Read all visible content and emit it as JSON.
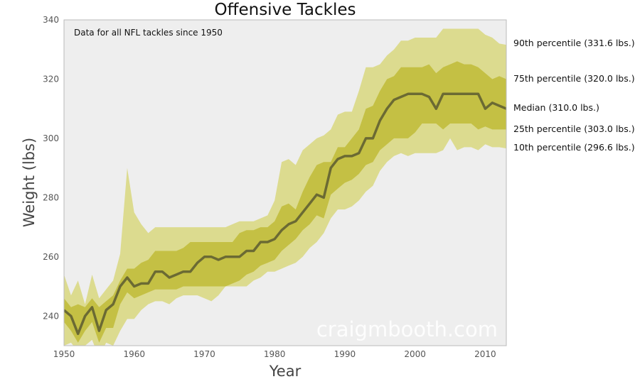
{
  "chart_data": {
    "type": "area",
    "title": "Offensive Tackles",
    "xlabel": "Year",
    "ylabel": "Weight (lbs)",
    "annotation": "Data for all NFL tackles since 1950",
    "watermark": "craigmbooth.com",
    "xlim": [
      1950,
      2013
    ],
    "ylim": [
      230,
      340
    ],
    "grid": false,
    "xticks": [
      1950,
      1960,
      1970,
      1980,
      1990,
      2000,
      2010
    ],
    "yticks": [
      240,
      260,
      280,
      300,
      320,
      340
    ],
    "x": [
      1950,
      1951,
      1952,
      1953,
      1954,
      1955,
      1956,
      1957,
      1958,
      1959,
      1960,
      1961,
      1962,
      1963,
      1964,
      1965,
      1966,
      1967,
      1968,
      1969,
      1970,
      1971,
      1972,
      1973,
      1974,
      1975,
      1976,
      1977,
      1978,
      1979,
      1980,
      1981,
      1982,
      1983,
      1984,
      1985,
      1986,
      1987,
      1988,
      1989,
      1990,
      1991,
      1992,
      1993,
      1994,
      1995,
      1996,
      1997,
      1998,
      1999,
      2000,
      2001,
      2002,
      2003,
      2004,
      2005,
      2006,
      2007,
      2008,
      2009,
      2010,
      2011,
      2012,
      2013
    ],
    "series": [
      {
        "name": "90th percentile (331.6 lbs.)",
        "values": [
          254,
          247,
          252,
          244,
          254,
          246,
          249,
          252,
          261,
          290,
          275,
          271,
          268,
          270,
          270,
          270,
          270,
          270,
          270,
          270,
          270,
          270,
          270,
          270,
          271,
          272,
          272,
          272,
          273,
          274,
          279,
          292,
          293,
          291,
          296,
          298,
          300,
          301,
          303,
          308,
          309,
          309,
          316,
          324,
          324,
          325,
          328,
          330,
          333,
          333,
          334,
          334,
          334,
          334,
          337,
          337,
          337,
          337,
          337,
          337,
          335,
          334,
          332,
          331.6
        ]
      },
      {
        "name": "75th percentile (320.0 lbs.)",
        "values": [
          246,
          243,
          244,
          243,
          246,
          243,
          245,
          247,
          252,
          256,
          256,
          258,
          259,
          262,
          262,
          262,
          262,
          263,
          265,
          265,
          265,
          265,
          265,
          265,
          265,
          268,
          269,
          269,
          270,
          270,
          272,
          277,
          278,
          276,
          282,
          287,
          291,
          292,
          292,
          297,
          297,
          300,
          303,
          310,
          311,
          316,
          320,
          321,
          324,
          324,
          324,
          324,
          325,
          322,
          324,
          325,
          326,
          325,
          325,
          324,
          322,
          320,
          321,
          320
        ]
      },
      {
        "name": "Median (310.0 lbs.)",
        "values": [
          242,
          240,
          234,
          240,
          243,
          235,
          242,
          244,
          250,
          253,
          250,
          251,
          251,
          255,
          255,
          253,
          254,
          255,
          255,
          258,
          260,
          260,
          259,
          260,
          260,
          260,
          262,
          262,
          265,
          265,
          266,
          269,
          271,
          272,
          275,
          278,
          281,
          280,
          290,
          293,
          294,
          294,
          295,
          300,
          300,
          306,
          310,
          313,
          314,
          315,
          315,
          315,
          314,
          310,
          315,
          315,
          315,
          315,
          315,
          315,
          310,
          312,
          311,
          310
        ]
      },
      {
        "name": "25th percentile (303.0 lbs.)",
        "values": [
          238,
          235,
          231,
          235,
          238,
          231,
          236,
          236,
          244,
          248,
          246,
          247,
          248,
          249,
          249,
          249,
          249,
          250,
          250,
          250,
          250,
          250,
          250,
          250,
          251,
          252,
          254,
          255,
          257,
          258,
          259,
          262,
          264,
          266,
          269,
          271,
          274,
          273,
          281,
          283,
          285,
          286,
          288,
          291,
          292,
          296,
          298,
          300,
          300,
          300,
          302,
          305,
          305,
          305,
          303,
          305,
          305,
          305,
          305,
          303,
          304,
          303,
          303,
          303
        ]
      },
      {
        "name": "10th percentile (296.6 lbs.)",
        "values": [
          230,
          231,
          228,
          230,
          232,
          226,
          231,
          230,
          235,
          239,
          239,
          242,
          244,
          245,
          245,
          244,
          246,
          247,
          247,
          247,
          246,
          245,
          247,
          250,
          250,
          250,
          250,
          252,
          253,
          255,
          255,
          256,
          257,
          258,
          260,
          263,
          265,
          268,
          273,
          276,
          276,
          277,
          279,
          282,
          284,
          289,
          292,
          294,
          295,
          294,
          295,
          295,
          295,
          295,
          296,
          300,
          296,
          297,
          297,
          296,
          298,
          297,
          297,
          296.6
        ]
      }
    ],
    "colors": {
      "outer_band": "#dcdb8f",
      "inner_band": "#c4c044",
      "median_line": "#6b6a33",
      "plot_background": "#eeeeee",
      "frame": "#bbbbbb"
    }
  }
}
